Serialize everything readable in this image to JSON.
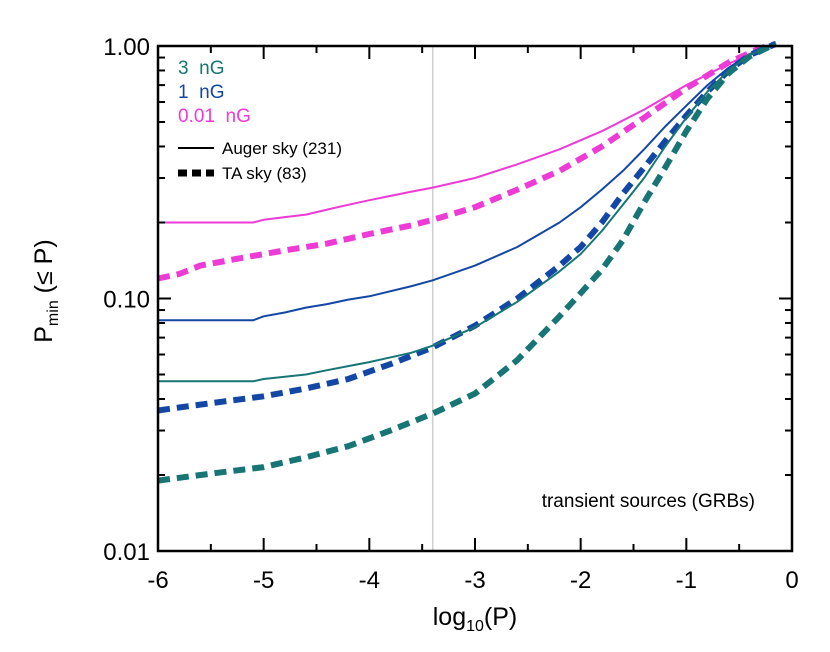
{
  "chart_data": {
    "type": "line",
    "title": "",
    "xlabel": {
      "main": "log",
      "sub": "10",
      "rest": "(P)"
    },
    "ylabel": {
      "main": "P",
      "sub": "min",
      "rest": " (≤ P)"
    },
    "x_range": [
      -6,
      0
    ],
    "y_range": [
      0.01,
      1.0
    ],
    "y_scale": "log",
    "x_ticks": [
      -6,
      -5,
      -4,
      -3,
      -2,
      -1,
      0
    ],
    "x_tick_labels": [
      "-6",
      "-5",
      "-4",
      "-3",
      "-2",
      "-1",
      "0"
    ],
    "y_ticks": [
      0.01,
      0.1,
      1.0
    ],
    "y_tick_labels": [
      "0.01",
      "0.10",
      "1.00"
    ],
    "reference_line_x": -3.4,
    "annotation": "transient sources (GRBs)",
    "legend": {
      "placement": "top-left",
      "fields": [
        {
          "label": "3  nG",
          "color": "#177575"
        },
        {
          "label": "1  nG",
          "color": "#1347a6"
        },
        {
          "label": "0.01  nG",
          "color": "#ee3ad6"
        }
      ],
      "styles": [
        {
          "label": "Auger sky (231)",
          "dash": "solid"
        },
        {
          "label": "TA sky (83)",
          "dash": "dashed"
        }
      ]
    },
    "series": [
      {
        "field": "0.01  nG",
        "sky": "Auger sky (231)",
        "color": "#ee3ad6",
        "dash": "solid",
        "x": [
          -6.0,
          -5.1,
          -5.0,
          -4.8,
          -4.6,
          -4.4,
          -4.2,
          -4.0,
          -3.6,
          -3.4,
          -3.0,
          -2.6,
          -2.2,
          -1.8,
          -1.4,
          -1.0,
          -0.6,
          -0.3,
          -0.15
        ],
        "y": [
          0.2,
          0.2,
          0.205,
          0.21,
          0.215,
          0.225,
          0.235,
          0.245,
          0.265,
          0.275,
          0.3,
          0.34,
          0.39,
          0.46,
          0.56,
          0.7,
          0.85,
          0.97,
          1.0
        ]
      },
      {
        "field": "0.01  nG",
        "sky": "TA sky (83)",
        "color": "#ee3ad6",
        "dash": "dashed",
        "x": [
          -6.0,
          -5.8,
          -5.6,
          -5.2,
          -4.8,
          -4.4,
          -4.0,
          -3.6,
          -3.4,
          -3.0,
          -2.6,
          -2.2,
          -1.8,
          -1.4,
          -1.0,
          -0.6,
          -0.3,
          -0.15
        ],
        "y": [
          0.12,
          0.125,
          0.135,
          0.145,
          0.155,
          0.165,
          0.18,
          0.195,
          0.205,
          0.23,
          0.27,
          0.32,
          0.4,
          0.52,
          0.68,
          0.86,
          0.98,
          1.02
        ]
      },
      {
        "field": "1  nG",
        "sky": "Auger sky (231)",
        "color": "#1347a6",
        "dash": "solid",
        "x": [
          -6.0,
          -5.1,
          -5.0,
          -4.8,
          -4.6,
          -4.4,
          -4.2,
          -4.0,
          -3.6,
          -3.4,
          -3.0,
          -2.6,
          -2.2,
          -2.0,
          -1.8,
          -1.6,
          -1.4,
          -1.2,
          -1.0,
          -0.8,
          -0.6,
          -0.4,
          -0.2,
          -0.15
        ],
        "y": [
          0.082,
          0.082,
          0.085,
          0.088,
          0.092,
          0.095,
          0.099,
          0.102,
          0.112,
          0.118,
          0.135,
          0.16,
          0.2,
          0.23,
          0.27,
          0.32,
          0.39,
          0.48,
          0.58,
          0.7,
          0.82,
          0.93,
          1.0,
          1.02
        ]
      },
      {
        "field": "1  nG",
        "sky": "TA sky (83)",
        "color": "#1347a6",
        "dash": "dashed",
        "x": [
          -6.0,
          -5.8,
          -5.4,
          -5.0,
          -4.6,
          -4.2,
          -3.8,
          -3.4,
          -3.0,
          -2.6,
          -2.2,
          -2.0,
          -1.8,
          -1.6,
          -1.4,
          -1.2,
          -1.0,
          -0.8,
          -0.6,
          -0.4,
          -0.2,
          -0.15
        ],
        "y": [
          0.036,
          0.037,
          0.039,
          0.041,
          0.044,
          0.048,
          0.055,
          0.064,
          0.078,
          0.1,
          0.135,
          0.16,
          0.2,
          0.26,
          0.33,
          0.42,
          0.53,
          0.66,
          0.8,
          0.92,
          1.0,
          1.02
        ]
      },
      {
        "field": "3  nG",
        "sky": "Auger sky (231)",
        "color": "#177575",
        "dash": "solid",
        "x": [
          -6.0,
          -5.1,
          -5.0,
          -4.8,
          -4.6,
          -4.4,
          -4.2,
          -4.0,
          -3.6,
          -3.4,
          -3.0,
          -2.6,
          -2.2,
          -2.0,
          -1.8,
          -1.6,
          -1.4,
          -1.2,
          -1.0,
          -0.8,
          -0.6,
          -0.4,
          -0.2,
          -0.15
        ],
        "y": [
          0.047,
          0.047,
          0.048,
          0.049,
          0.05,
          0.052,
          0.054,
          0.056,
          0.061,
          0.065,
          0.077,
          0.097,
          0.128,
          0.15,
          0.185,
          0.235,
          0.3,
          0.4,
          0.52,
          0.66,
          0.8,
          0.92,
          1.0,
          1.02
        ]
      },
      {
        "field": "3  nG",
        "sky": "TA sky (83)",
        "color": "#177575",
        "dash": "dashed",
        "x": [
          -6.0,
          -5.8,
          -5.4,
          -5.0,
          -4.6,
          -4.2,
          -3.8,
          -3.4,
          -3.0,
          -2.6,
          -2.2,
          -2.0,
          -1.8,
          -1.6,
          -1.4,
          -1.2,
          -1.0,
          -0.8,
          -0.6,
          -0.4,
          -0.2,
          -0.15
        ],
        "y": [
          0.019,
          0.0195,
          0.0205,
          0.0215,
          0.0235,
          0.026,
          0.03,
          0.035,
          0.042,
          0.057,
          0.085,
          0.105,
          0.13,
          0.17,
          0.24,
          0.33,
          0.46,
          0.62,
          0.78,
          0.91,
          1.0,
          1.02
        ]
      }
    ]
  }
}
